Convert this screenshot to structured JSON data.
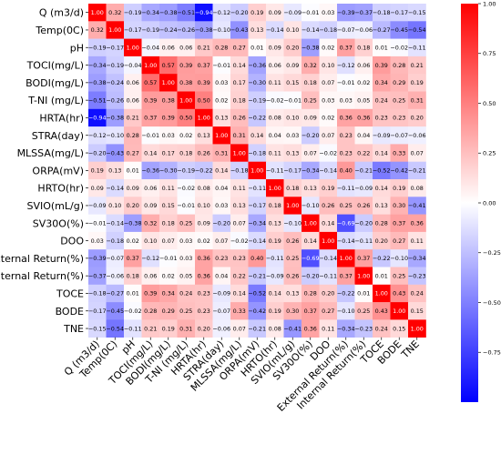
{
  "chart_data": {
    "type": "heatmap",
    "title": "",
    "xlabel": "",
    "ylabel": "",
    "variables": [
      "Q (m3/d)",
      "Temp(0C)",
      "pH",
      "TOCI(mg/L)",
      "BODI(mg/L)",
      "T-NI (mg/L)",
      "HRTA(hr)",
      "STRA(day)",
      "MLSSA(mg/L)",
      "ORPA(mV)",
      "HRTO(hr)",
      "SVIO(mL/g)",
      "SV30O(%)",
      "DOO",
      "External Return(%)",
      "Internal Return(%)",
      "TOCE",
      "BODE",
      "TNE"
    ],
    "matrix": [
      [
        1.0,
        0.32,
        -0.19,
        -0.34,
        -0.38,
        -0.51,
        -0.94,
        -0.12,
        -0.2,
        0.19,
        0.09,
        -0.09,
        -0.01,
        0.03,
        -0.39,
        -0.37,
        -0.18,
        -0.17,
        -0.15
      ],
      [
        0.32,
        1.0,
        -0.17,
        -0.19,
        -0.24,
        -0.26,
        -0.38,
        -0.1,
        -0.43,
        0.13,
        -0.14,
        0.1,
        -0.14,
        -0.18,
        -0.07,
        -0.06,
        -0.27,
        -0.45,
        -0.54
      ],
      [
        -0.19,
        -0.17,
        1.0,
        -0.04,
        0.06,
        0.06,
        0.21,
        0.28,
        0.27,
        0.01,
        0.09,
        0.2,
        -0.38,
        0.02,
        0.37,
        0.18,
        0.01,
        -0.02,
        -0.11
      ],
      [
        -0.34,
        -0.19,
        -0.04,
        1.0,
        0.57,
        0.39,
        0.37,
        -0.01,
        0.14,
        -0.36,
        0.06,
        0.09,
        0.32,
        0.1,
        -0.12,
        0.06,
        0.39,
        0.28,
        0.21
      ],
      [
        -0.38,
        -0.24,
        0.06,
        0.57,
        1.0,
        0.38,
        0.39,
        0.03,
        0.17,
        -0.3,
        0.11,
        0.15,
        0.18,
        0.07,
        -0.01,
        0.02,
        0.34,
        0.29,
        0.19
      ],
      [
        -0.51,
        -0.26,
        0.06,
        0.39,
        0.38,
        1.0,
        0.5,
        0.02,
        0.18,
        -0.19,
        -0.02,
        -0.01,
        0.25,
        0.03,
        0.03,
        0.05,
        0.24,
        0.25,
        0.31
      ],
      [
        -0.94,
        -0.38,
        0.21,
        0.37,
        0.39,
        0.5,
        1.0,
        0.13,
        0.26,
        -0.22,
        0.08,
        0.1,
        0.09,
        0.02,
        0.36,
        0.36,
        0.23,
        0.23,
        0.2
      ],
      [
        -0.12,
        -0.1,
        0.28,
        -0.01,
        0.03,
        0.02,
        0.13,
        1.0,
        0.31,
        0.14,
        0.04,
        0.03,
        -0.2,
        0.07,
        0.23,
        0.04,
        -0.09,
        -0.07,
        -0.06
      ],
      [
        -0.2,
        -0.43,
        0.27,
        0.14,
        0.17,
        0.18,
        0.26,
        0.31,
        1.0,
        -0.18,
        0.11,
        0.13,
        0.07,
        -0.02,
        0.23,
        0.22,
        0.14,
        0.33,
        0.07
      ],
      [
        0.19,
        0.13,
        0.01,
        -0.36,
        -0.3,
        -0.19,
        -0.22,
        0.14,
        -0.18,
        1.0,
        -0.11,
        -0.17,
        -0.34,
        -0.14,
        0.4,
        -0.21,
        -0.52,
        -0.42,
        -0.21
      ],
      [
        0.09,
        -0.14,
        0.09,
        0.06,
        0.11,
        -0.02,
        0.08,
        0.04,
        0.11,
        -0.11,
        1.0,
        0.18,
        0.13,
        0.19,
        -0.11,
        -0.09,
        0.14,
        0.19,
        0.08
      ],
      [
        -0.09,
        0.1,
        0.2,
        0.09,
        0.15,
        -0.01,
        0.1,
        0.03,
        0.13,
        -0.17,
        0.18,
        1.0,
        -0.1,
        0.26,
        0.25,
        0.26,
        0.13,
        0.3,
        -0.41
      ],
      [
        -0.01,
        -0.14,
        -0.38,
        0.32,
        0.18,
        0.25,
        0.09,
        -0.2,
        0.07,
        -0.34,
        0.13,
        -0.1,
        1.0,
        0.14,
        -0.69,
        -0.2,
        0.28,
        0.37,
        0.36
      ],
      [
        0.03,
        -0.18,
        0.02,
        0.1,
        0.07,
        0.03,
        0.02,
        0.07,
        -0.02,
        -0.14,
        0.19,
        0.26,
        0.14,
        1.0,
        -0.14,
        -0.11,
        0.2,
        0.27,
        0.11
      ],
      [
        -0.39,
        -0.07,
        0.37,
        -0.12,
        -0.01,
        0.03,
        0.36,
        0.23,
        0.23,
        0.4,
        -0.11,
        0.25,
        -0.69,
        -0.14,
        1.0,
        0.37,
        -0.22,
        -0.1,
        -0.34
      ],
      [
        -0.37,
        -0.06,
        0.18,
        0.06,
        0.02,
        0.05,
        0.36,
        0.04,
        0.22,
        -0.21,
        -0.09,
        0.26,
        -0.2,
        -0.11,
        0.37,
        1.0,
        0.01,
        0.25,
        -0.23
      ],
      [
        -0.18,
        -0.27,
        0.01,
        0.39,
        0.34,
        0.24,
        0.23,
        -0.09,
        0.14,
        -0.52,
        0.14,
        0.13,
        0.28,
        0.2,
        -0.22,
        0.01,
        1.0,
        0.43,
        0.24
      ],
      [
        -0.17,
        -0.45,
        -0.02,
        0.28,
        0.29,
        0.25,
        0.23,
        -0.07,
        0.33,
        -0.42,
        0.19,
        0.3,
        0.37,
        0.27,
        -0.1,
        0.25,
        0.43,
        1.0,
        0.15
      ],
      [
        -0.15,
        -0.54,
        -0.11,
        0.21,
        0.19,
        0.31,
        0.2,
        -0.06,
        0.07,
        -0.21,
        0.08,
        -0.41,
        0.36,
        0.11,
        -0.34,
        -0.23,
        0.24,
        0.15,
        1.0
      ]
    ],
    "colorbar": {
      "vmin": -1.0,
      "vmax": 1.0,
      "ticks": [
        1.0,
        0.75,
        0.5,
        0.25,
        0.0,
        -0.25,
        -0.5,
        -0.75
      ],
      "tick_labels": [
        "1.00",
        "0.75",
        "0.50",
        "0.25",
        "0.00",
        "−0.25",
        "−0.50",
        "−0.75"
      ],
      "colormap": "bwr",
      "colors": {
        "low": "#0000ff",
        "mid": "#ffffff",
        "high": "#ff0000"
      }
    },
    "grid": false,
    "legend": "colorbar-right"
  }
}
